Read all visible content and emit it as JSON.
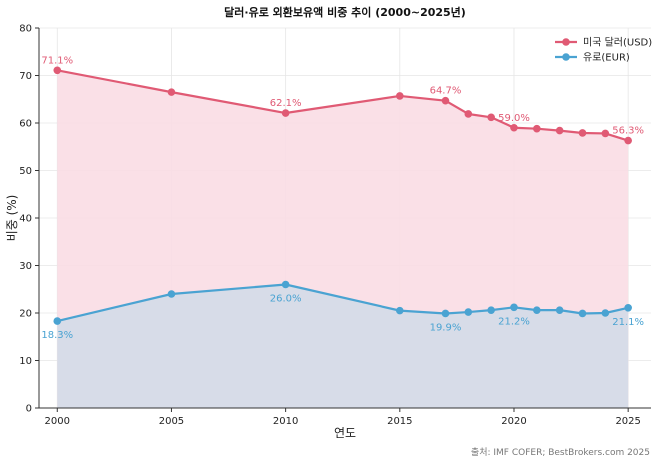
{
  "chart_data": {
    "type": "area",
    "title": "달러·유로 외환보유액 비중 추이 (2000~2025년)",
    "xlabel": "연도",
    "ylabel": "비중 (%)",
    "xlim": [
      1999.2,
      2026.0
    ],
    "ylim": [
      0,
      80
    ],
    "xticks": [
      2000,
      2005,
      2010,
      2015,
      2020,
      2025
    ],
    "yticks": [
      0,
      10,
      20,
      30,
      40,
      50,
      60,
      70,
      80
    ],
    "grid": true,
    "legend_position": "top-right",
    "series": [
      {
        "name": "미국 달러(USD)",
        "color": "#e05a74",
        "fill": "#f9dde4",
        "x": [
          2000,
          2005,
          2010,
          2015,
          2017,
          2018,
          2019,
          2020,
          2021,
          2022,
          2023,
          2024,
          2025
        ],
        "values": [
          71.1,
          66.5,
          62.1,
          65.7,
          64.7,
          61.9,
          61.2,
          59.0,
          58.8,
          58.4,
          57.9,
          57.8,
          56.3
        ]
      },
      {
        "name": "유로(EUR)",
        "color": "#4aa3d2",
        "fill": "#d3dce8",
        "x": [
          2000,
          2005,
          2010,
          2015,
          2017,
          2018,
          2019,
          2020,
          2021,
          2022,
          2023,
          2024,
          2025
        ],
        "values": [
          18.3,
          24.0,
          26.0,
          20.5,
          19.9,
          20.2,
          20.6,
          21.2,
          20.6,
          20.6,
          19.9,
          20.0,
          21.1
        ]
      }
    ],
    "annotations": [
      {
        "series": 0,
        "x": 2000,
        "text": "71.1%",
        "pos": "above"
      },
      {
        "series": 0,
        "x": 2010,
        "text": "62.1%",
        "pos": "above"
      },
      {
        "series": 0,
        "x": 2017,
        "text": "64.7%",
        "pos": "above"
      },
      {
        "series": 0,
        "x": 2020,
        "text": "59.0%",
        "pos": "above"
      },
      {
        "series": 0,
        "x": 2025,
        "text": "56.3%",
        "pos": "above"
      },
      {
        "series": 1,
        "x": 2000,
        "text": "18.3%",
        "pos": "below"
      },
      {
        "series": 1,
        "x": 2010,
        "text": "26.0%",
        "pos": "below"
      },
      {
        "series": 1,
        "x": 2017,
        "text": "19.9%",
        "pos": "below"
      },
      {
        "series": 1,
        "x": 2020,
        "text": "21.2%",
        "pos": "below"
      },
      {
        "series": 1,
        "x": 2025,
        "text": "21.1%",
        "pos": "below"
      }
    ],
    "source": "출처: IMF COFER; BestBrokers.com 2025"
  }
}
